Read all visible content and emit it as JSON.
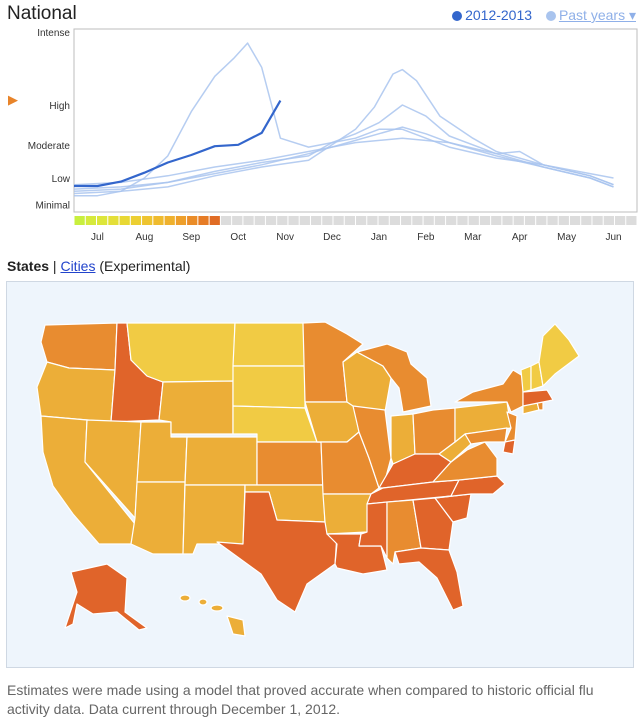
{
  "header": {
    "title": "National",
    "current_season": "2012-2013",
    "past_years": "Past years ▾",
    "current_color": "#3366cc",
    "past_color": "#a9c4ee"
  },
  "tabs": {
    "states": "States",
    "separator": "|",
    "cities": "Cities",
    "experimental": "(Experimental)"
  },
  "footnote": "Estimates were made using a model that proved accurate when compared to historic official flu activity data. Data current through December 1, 2012.",
  "chart_data": {
    "type": "line",
    "title": "",
    "xlabel": "",
    "ylabel": "",
    "x_ticks": [
      "Jul",
      "Aug",
      "Sep",
      "Oct",
      "Nov",
      "Dec",
      "Jan",
      "Feb",
      "Mar",
      "Apr",
      "May",
      "Jun"
    ],
    "y_levels": [
      "Intense",
      "High",
      "Moderate",
      "Low",
      "Minimal"
    ],
    "y_level_values": [
      4.0,
      2.35,
      1.45,
      0.7,
      0.1
    ],
    "ylim": [
      0,
      4.0
    ],
    "current_level_marker": 2.45,
    "series": [
      {
        "season": "2012-2013",
        "color": "#3366cc",
        "x": [
          0,
          0.5,
          1,
          1.5,
          2,
          2.5,
          3,
          3.5,
          4,
          4.4
        ],
        "y": [
          0.52,
          0.52,
          0.62,
          0.82,
          1.05,
          1.22,
          1.42,
          1.45,
          1.72,
          2.45
        ]
      },
      {
        "season": "past",
        "color": "#a9c4ee",
        "x": [
          0,
          0.5,
          1,
          1.5,
          2,
          2.5,
          3,
          3.4,
          3.7,
          4,
          4.4,
          5,
          5.5,
          6,
          6.5,
          7,
          7.5,
          8,
          9,
          10,
          11,
          11.5
        ],
        "y": [
          0.3,
          0.3,
          0.4,
          0.7,
          1.2,
          2.2,
          3.0,
          3.4,
          3.75,
          3.2,
          1.6,
          1.4,
          1.5,
          1.6,
          1.8,
          1.8,
          1.6,
          1.4,
          1.15,
          1.0,
          0.75,
          0.55
        ]
      },
      {
        "season": "past",
        "color": "#a9c4ee",
        "x": [
          0,
          1,
          2,
          3,
          4,
          5,
          6,
          6.4,
          6.8,
          7,
          7.3,
          7.8,
          8.5,
          9,
          10,
          11,
          11.5
        ],
        "y": [
          0.35,
          0.4,
          0.5,
          0.75,
          0.95,
          1.1,
          1.8,
          2.3,
          3.05,
          3.15,
          2.9,
          2.1,
          1.6,
          1.3,
          1.0,
          0.75,
          0.55
        ]
      },
      {
        "season": "past",
        "color": "#a9c4ee",
        "x": [
          0,
          1,
          2,
          3,
          4,
          5,
          5.5,
          6,
          6.5,
          7,
          7.5,
          8,
          9,
          10,
          11,
          11.5
        ],
        "y": [
          0.4,
          0.45,
          0.6,
          0.85,
          1.05,
          1.2,
          1.5,
          1.7,
          1.95,
          2.35,
          2.1,
          1.65,
          1.25,
          0.95,
          0.7,
          0.5
        ]
      },
      {
        "season": "past",
        "color": "#a9c4ee",
        "x": [
          0,
          1,
          2,
          3,
          4,
          5,
          6,
          7,
          7.5,
          8,
          9,
          10,
          11,
          11.5
        ],
        "y": [
          0.45,
          0.5,
          0.6,
          0.8,
          1.0,
          1.25,
          1.55,
          1.85,
          1.7,
          1.5,
          1.2,
          0.95,
          0.7,
          0.5
        ]
      },
      {
        "season": "past",
        "color": "#a9c4ee",
        "x": [
          0,
          1,
          2,
          3,
          4,
          5,
          6,
          7,
          8,
          9,
          9.5,
          10,
          11,
          11.5
        ],
        "y": [
          0.55,
          0.6,
          0.75,
          0.95,
          1.1,
          1.3,
          1.5,
          1.6,
          1.5,
          1.25,
          1.3,
          1.0,
          0.8,
          0.7
        ]
      }
    ],
    "activity_strip": [
      "#c8ef3e",
      "#d6ea3c",
      "#dde63a",
      "#e4df38",
      "#e8d834",
      "#eccf32",
      "#eec430",
      "#efbb2e",
      "#efb12d",
      "#ee9f2b",
      "#ea8c28",
      "#e67c26",
      "#e06c25",
      "#dcdcdc",
      "#dcdcdc",
      "#dcdcdc",
      "#dcdcdc",
      "#dcdcdc",
      "#dcdcdc",
      "#dcdcdc",
      "#dcdcdc",
      "#dcdcdc",
      "#dcdcdc",
      "#dcdcdc",
      "#dcdcdc",
      "#dcdcdc",
      "#dcdcdc",
      "#dcdcdc",
      "#dcdcdc",
      "#dcdcdc",
      "#dcdcdc",
      "#dcdcdc",
      "#dcdcdc",
      "#dcdcdc",
      "#dcdcdc",
      "#dcdcdc",
      "#dcdcdc",
      "#dcdcdc",
      "#dcdcdc",
      "#dcdcdc",
      "#dcdcdc",
      "#dcdcdc",
      "#dcdcdc",
      "#dcdcdc",
      "#dcdcdc",
      "#dcdcdc",
      "#dcdcdc",
      "#dcdcdc",
      "#dcdcdc",
      "#dcdcdc"
    ]
  },
  "map": {
    "level_colors": {
      "high": "#e0642a",
      "moderate": "#e88c30",
      "low": "#ecae38",
      "minimal": "#f1cb44",
      "border": "#ffffff"
    }
  }
}
